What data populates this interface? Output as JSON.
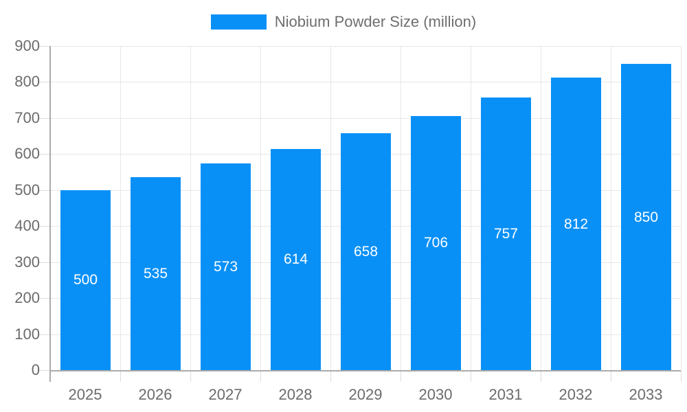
{
  "legend": {
    "items": [
      {
        "label": "Niobium Powder Size (million)",
        "color": "#0990f7"
      }
    ]
  },
  "chart_data": {
    "type": "bar",
    "title": "",
    "categories": [
      "2025",
      "2026",
      "2027",
      "2028",
      "2029",
      "2030",
      "2031",
      "2032",
      "2033"
    ],
    "series": [
      {
        "name": "Niobium Powder Size (million)",
        "values": [
          500,
          535,
          573,
          614,
          658,
          706,
          757,
          812,
          850
        ],
        "color": "#0990f7"
      }
    ],
    "xlabel": "",
    "ylabel": "",
    "ylim": [
      0,
      900
    ],
    "y_ticks": [
      0,
      100,
      200,
      300,
      400,
      500,
      600,
      700,
      800,
      900
    ],
    "grid": true,
    "legend_position": "top-center",
    "value_labels": {
      "visible": true,
      "position": "inside-center",
      "color": "#ffffff"
    },
    "colors": {
      "bar": "#0990f7",
      "grid_line": "#e7e7e7",
      "tick_line": "#dcdcdc",
      "axis_line": "#aaaaaa",
      "axis_text": "#6b6b6b",
      "legend_text": "#6e6e6e",
      "background": "#ffffff"
    }
  }
}
